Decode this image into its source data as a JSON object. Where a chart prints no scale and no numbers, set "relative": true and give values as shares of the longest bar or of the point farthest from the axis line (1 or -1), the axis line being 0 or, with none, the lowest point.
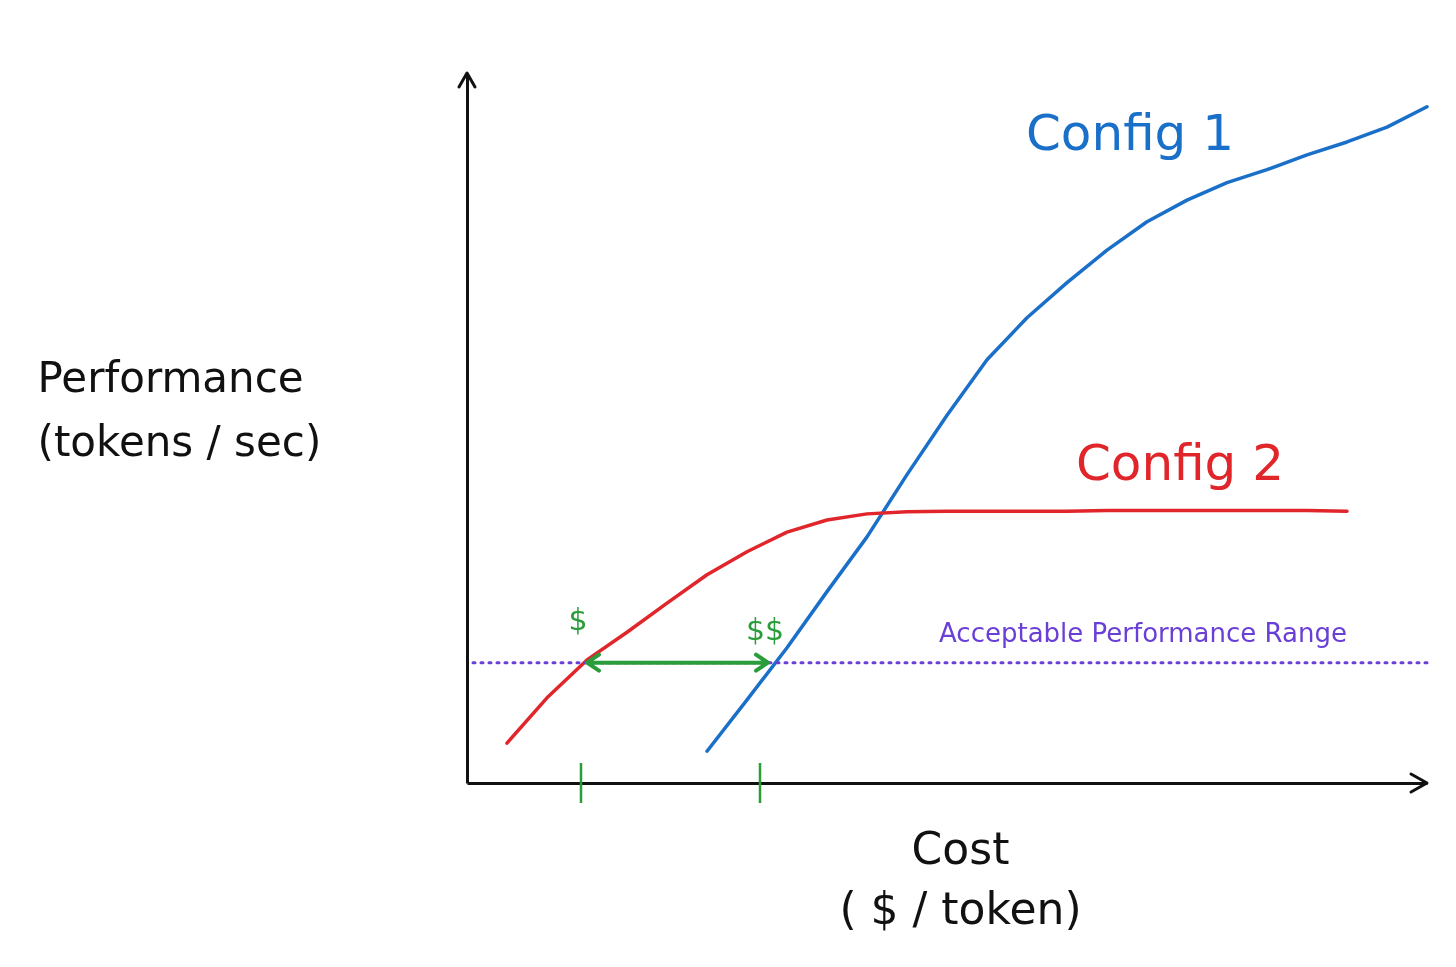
{
  "chart_data": {
    "type": "line",
    "relative": true,
    "xlabel": "Cost\n( $ / token)",
    "ylabel": "Performance\n(tokens / sec)",
    "categories": [
      null,
      null,
      null,
      null,
      null,
      null,
      null,
      null,
      null,
      null,
      null,
      null,
      null,
      null,
      null,
      null,
      null,
      null,
      null,
      null,
      null,
      null,
      null,
      null,
      null
    ],
    "grid": false,
    "legend": false,
    "marker": "none",
    "line_style": "solid",
    "series": [
      {
        "name": "Config 1",
        "color": "#1a6fc9",
        "values": [
          null,
          null,
          null,
          null,
          null,
          null,
          0.047,
          0.123,
          0.2,
          0.283,
          0.364,
          0.456,
          0.544,
          0.626,
          0.688,
          0.74,
          0.788,
          0.83,
          0.862,
          0.888,
          0.907,
          0.929,
          0.948,
          0.97,
          1.0
        ]
      },
      {
        "name": "Config 2",
        "color": "#e0262b",
        "values": [
          null,
          0.059,
          0.126,
          0.182,
          0.223,
          0.266,
          0.308,
          0.342,
          0.371,
          0.389,
          0.398,
          0.401,
          0.402,
          0.402,
          0.402,
          0.402,
          0.403,
          0.403,
          0.403,
          0.403,
          0.403,
          0.403,
          0.402,
          null,
          null
        ]
      }
    ],
    "ref_lines": [
      {
        "axis": "y",
        "value": 0.178,
        "label": "Acceptable Performance Range",
        "color": "#6a3fd6",
        "line_style": "dotted"
      }
    ],
    "annotations": [
      "$",
      "$$"
    ]
  }
}
